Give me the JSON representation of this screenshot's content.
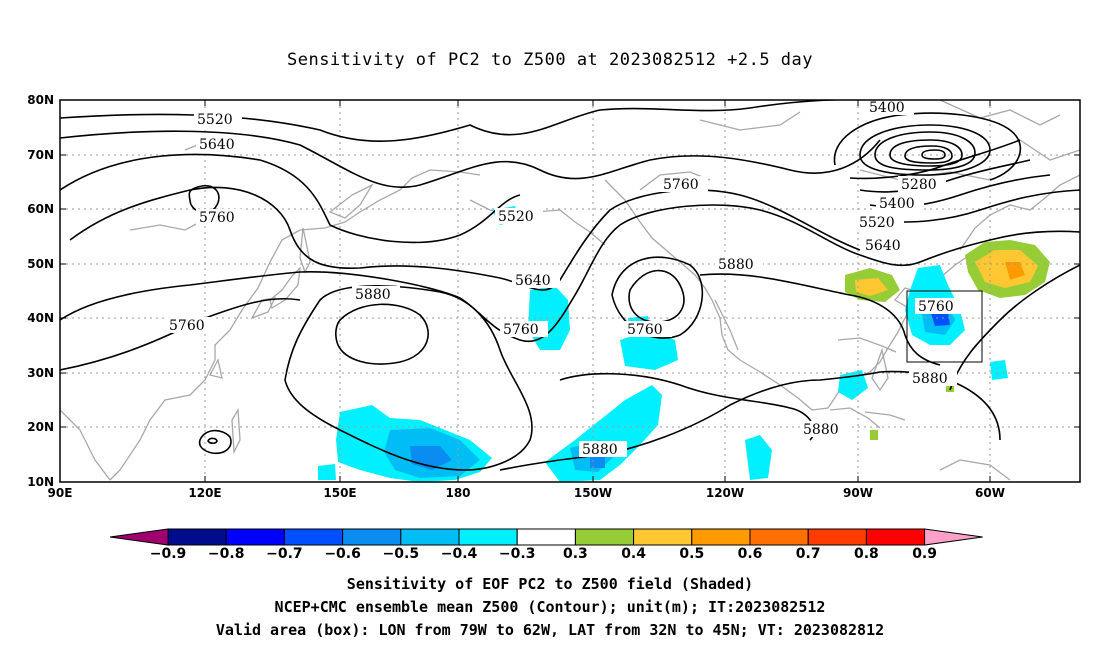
{
  "title": "Sensitivity of PC2 to Z500 at 2023082512 +2.5 day",
  "lat_labels": [
    "80N",
    "70N",
    "60N",
    "50N",
    "40N",
    "30N",
    "20N",
    "10N"
  ],
  "lon_labels": [
    "90E",
    "120E",
    "150E",
    "180",
    "150W",
    "120W",
    "90W",
    "60W"
  ],
  "contour_labels": {
    "c5400a": "5400",
    "c5520a": "5520",
    "c5640a": "5640",
    "c5760a": "5760",
    "c5520b": "5520",
    "c5760b": "5760",
    "c5280": "5280",
    "c5400b": "5400",
    "c5520c": "5520",
    "c5640b": "5640",
    "c5880a": "5880",
    "c5760c": "5760",
    "c5880b": "5880",
    "c5640c": "5640",
    "c5760d": "5760",
    "c5760e": "5760",
    "c5760f": "5760",
    "c5880c": "5880",
    "c5880d": "5880",
    "c5880e": "5880"
  },
  "colorbar": {
    "labels": [
      "-0.9",
      "-0.8",
      "-0.7",
      "-0.6",
      "-0.5",
      "-0.4",
      "-0.3",
      "0.3",
      "0.4",
      "0.5",
      "0.6",
      "0.7",
      "0.8",
      "0.9"
    ],
    "colors": [
      "#a0006e",
      "#000c8c",
      "#0000ff",
      "#0050ff",
      "#0a8cf0",
      "#00bef5",
      "#00f0ff",
      "#ffffff",
      "#96cd37",
      "#ffc832",
      "#ff9b00",
      "#ff6e00",
      "#ff3c00",
      "#ff0000",
      "#ffa0c8"
    ]
  },
  "captions": {
    "line1": "Sensitivity of EOF PC2 to Z500 field (Shaded)",
    "line2": "NCEP+CMC ensemble mean Z500 (Contour); unit(m); IT:2023082512",
    "line3": "Valid area (box): LON from 79W to 62W, LAT from 32N to 45N; VT: 2023082812"
  }
}
